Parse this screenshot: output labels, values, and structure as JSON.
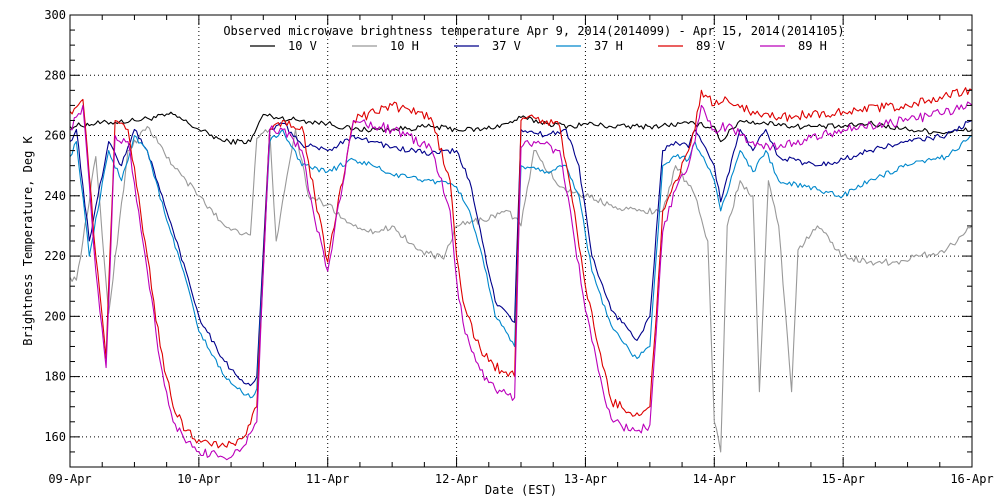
{
  "chart_data": {
    "type": "line",
    "title": "Observed microwave brightness temperature Apr  9, 2014(2014099) - Apr 15, 2014(2014105)",
    "xlabel": "Date (EST)",
    "ylabel": "Brightness Temperature, Deg K",
    "xlim": [
      0,
      7
    ],
    "ylim": [
      150,
      300
    ],
    "x_unit": "days since 09-Apr 00:00",
    "x_tick_values": [
      0,
      1,
      2,
      3,
      4,
      5,
      6,
      7
    ],
    "x_tick_labels": [
      "09-Apr",
      "10-Apr",
      "11-Apr",
      "12-Apr",
      "13-Apr",
      "14-Apr",
      "15-Apr",
      "16-Apr"
    ],
    "y_tick_values": [
      160,
      180,
      200,
      220,
      240,
      260,
      280,
      300
    ],
    "y_tick_labels": [
      "160",
      "180",
      "200",
      "220",
      "240",
      "260",
      "280",
      "300"
    ],
    "grid": true,
    "legend_position": "top-center",
    "series": [
      {
        "name": "10 V",
        "color": "#000000",
        "x": [
          0,
          0.2,
          0.5,
          0.8,
          1.0,
          1.2,
          1.4,
          1.5,
          1.6,
          1.8,
          2.0,
          2.2,
          2.5,
          2.8,
          3.0,
          3.2,
          3.4,
          3.5,
          3.7,
          3.9,
          4.0,
          4.2,
          4.5,
          4.8,
          5.0,
          5.05,
          5.2,
          5.4,
          5.5,
          5.6,
          5.8,
          6.0,
          6.2,
          6.5,
          6.8,
          7.0
        ],
        "values": [
          263,
          264,
          265,
          267,
          262,
          258,
          258,
          267,
          266,
          265,
          264,
          262,
          262,
          263,
          262,
          262,
          264,
          266,
          264,
          263,
          264,
          263,
          263,
          264,
          263,
          258,
          265,
          264,
          264,
          263,
          263,
          263,
          264,
          262,
          261,
          262
        ]
      },
      {
        "name": "10 H",
        "color": "#999999",
        "x": [
          0,
          0.05,
          0.1,
          0.2,
          0.3,
          0.45,
          0.6,
          0.8,
          1.0,
          1.2,
          1.4,
          1.45,
          1.55,
          1.6,
          1.75,
          1.85,
          2.0,
          2.2,
          2.4,
          2.5,
          2.7,
          2.9,
          3.0,
          3.2,
          3.4,
          3.5,
          3.6,
          3.8,
          4.0,
          4.2,
          4.4,
          4.6,
          4.7,
          4.85,
          4.95,
          5.0,
          5.05,
          5.1,
          5.2,
          5.3,
          5.35,
          5.42,
          5.5,
          5.6,
          5.65,
          5.8,
          6.0,
          6.2,
          6.4,
          6.6,
          6.8,
          7.0
        ],
        "values": [
          213,
          212,
          225,
          253,
          201,
          255,
          263,
          250,
          240,
          230,
          227,
          259,
          262,
          225,
          262,
          240,
          237,
          230,
          228,
          230,
          222,
          219,
          230,
          232,
          235,
          230,
          255,
          243,
          240,
          237,
          235,
          235,
          250,
          240,
          225,
          165,
          155,
          230,
          245,
          240,
          175,
          245,
          230,
          175,
          222,
          230,
          220,
          218,
          218,
          220,
          222,
          230
        ]
      },
      {
        "name": "37 V",
        "color": "#00008B",
        "x": [
          0,
          0.05,
          0.15,
          0.3,
          0.4,
          0.5,
          0.6,
          0.75,
          0.9,
          1.0,
          1.2,
          1.3,
          1.4,
          1.45,
          1.55,
          1.65,
          1.8,
          2.0,
          2.2,
          2.35,
          2.5,
          2.8,
          3.0,
          3.1,
          3.2,
          3.3,
          3.45,
          3.5,
          3.7,
          3.85,
          3.95,
          4.05,
          4.2,
          4.35,
          4.4,
          4.5,
          4.6,
          4.7,
          4.8,
          4.85,
          5.0,
          5.05,
          5.2,
          5.3,
          5.4,
          5.5,
          5.8,
          6.0,
          6.2,
          6.5,
          6.8,
          7.0
        ],
        "values": [
          258,
          262,
          225,
          258,
          250,
          262,
          255,
          235,
          215,
          200,
          185,
          180,
          177,
          180,
          262,
          264,
          257,
          255,
          260,
          258,
          256,
          254,
          255,
          245,
          225,
          205,
          198,
          262,
          260,
          262,
          250,
          220,
          202,
          195,
          192,
          200,
          255,
          258,
          256,
          262,
          250,
          238,
          262,
          255,
          262,
          253,
          250,
          252,
          255,
          258,
          260,
          265
        ]
      },
      {
        "name": "37 H",
        "color": "#0088CC",
        "x": [
          0,
          0.05,
          0.15,
          0.3,
          0.4,
          0.5,
          0.6,
          0.75,
          0.9,
          1.0,
          1.2,
          1.3,
          1.4,
          1.45,
          1.55,
          1.65,
          1.8,
          2.0,
          2.2,
          2.35,
          2.5,
          2.8,
          3.0,
          3.1,
          3.2,
          3.3,
          3.45,
          3.5,
          3.7,
          3.85,
          3.95,
          4.05,
          4.2,
          4.35,
          4.4,
          4.5,
          4.6,
          4.7,
          4.8,
          4.85,
          5.0,
          5.05,
          5.2,
          5.3,
          5.4,
          5.5,
          5.8,
          6.0,
          6.2,
          6.5,
          6.8,
          7.0
        ],
        "values": [
          253,
          258,
          220,
          255,
          245,
          260,
          255,
          232,
          212,
          195,
          180,
          176,
          173,
          176,
          258,
          262,
          250,
          248,
          252,
          250,
          247,
          245,
          243,
          235,
          220,
          200,
          190,
          250,
          248,
          250,
          240,
          215,
          197,
          188,
          186,
          190,
          250,
          253,
          252,
          258,
          245,
          235,
          255,
          248,
          255,
          245,
          242,
          240,
          245,
          250,
          253,
          260
        ]
      },
      {
        "name": "89 V",
        "color": "#DD0000",
        "x": [
          0,
          0.1,
          0.2,
          0.28,
          0.35,
          0.45,
          0.6,
          0.7,
          0.8,
          0.9,
          1.0,
          1.2,
          1.35,
          1.45,
          1.55,
          1.65,
          1.8,
          1.9,
          2.0,
          2.2,
          2.5,
          2.8,
          2.95,
          3.0,
          3.05,
          3.15,
          3.25,
          3.35,
          3.45,
          3.5,
          3.6,
          3.8,
          3.9,
          4.0,
          4.1,
          4.2,
          4.35,
          4.4,
          4.5,
          4.55,
          4.6,
          4.7,
          4.8,
          4.85,
          4.9,
          5.0,
          5.1,
          5.3,
          5.5,
          6.0,
          6.5,
          7.0
        ],
        "values": [
          268,
          272,
          220,
          186,
          265,
          262,
          220,
          190,
          170,
          162,
          159,
          157,
          160,
          170,
          262,
          265,
          263,
          240,
          218,
          265,
          270,
          266,
          245,
          220,
          205,
          192,
          185,
          182,
          180,
          265,
          266,
          263,
          238,
          210,
          190,
          172,
          168,
          168,
          170,
          200,
          235,
          245,
          255,
          262,
          275,
          270,
          272,
          268,
          266,
          268,
          270,
          275
        ]
      },
      {
        "name": "89 H",
        "color": "#BB00BB",
        "x": [
          0,
          0.1,
          0.2,
          0.28,
          0.35,
          0.45,
          0.6,
          0.7,
          0.8,
          0.9,
          1.0,
          1.2,
          1.35,
          1.45,
          1.55,
          1.65,
          1.8,
          1.9,
          2.0,
          2.2,
          2.5,
          2.8,
          2.95,
          3.0,
          3.05,
          3.15,
          3.25,
          3.35,
          3.45,
          3.5,
          3.6,
          3.8,
          3.9,
          4.0,
          4.1,
          4.2,
          4.35,
          4.4,
          4.5,
          4.55,
          4.6,
          4.7,
          4.8,
          4.85,
          4.9,
          5.0,
          5.1,
          5.3,
          5.5,
          6.0,
          6.5,
          7.0
        ],
        "values": [
          262,
          270,
          215,
          183,
          260,
          258,
          215,
          185,
          165,
          158,
          155,
          153,
          157,
          165,
          262,
          262,
          255,
          232,
          215,
          265,
          262,
          256,
          235,
          212,
          198,
          185,
          178,
          175,
          173,
          256,
          258,
          255,
          230,
          202,
          182,
          166,
          162,
          162,
          164,
          195,
          228,
          242,
          250,
          258,
          270,
          262,
          263,
          258,
          256,
          262,
          265,
          270
        ]
      }
    ]
  }
}
